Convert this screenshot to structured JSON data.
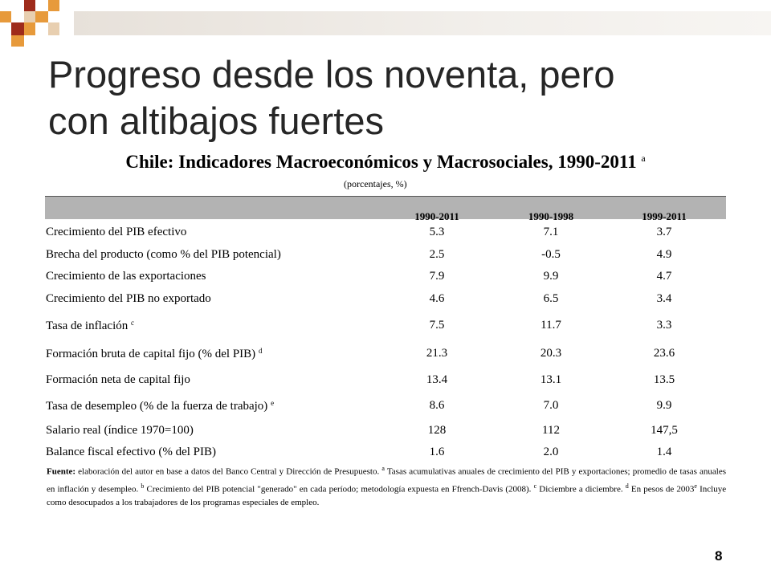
{
  "slide": {
    "title_line1": "Progreso desde los noventa, pero",
    "title_line2": "con altibajos fuertes",
    "page_number": "8"
  },
  "table": {
    "title": "Chile: Indicadores Macroeconómicos y Macrosociales, 1990-2011",
    "title_marker": "a",
    "units": "(porcentajes, %)",
    "columns": [
      "1990-2011",
      "1990-1998",
      "1999-2011"
    ],
    "rows": [
      {
        "label": "Crecimiento del PIB efectivo",
        "marker": "",
        "values": [
          "5.3",
          "7.1",
          "3.7"
        ]
      },
      {
        "label": "Brecha del producto (como % del PIB potencial)",
        "marker": "",
        "values": [
          "2.5",
          "-0.5",
          "4.9"
        ]
      },
      {
        "label": "Crecimiento de las exportaciones",
        "marker": "",
        "values": [
          "7.9",
          "9.9",
          "4.7"
        ]
      },
      {
        "label": "Crecimiento del PIB no exportado",
        "marker": "",
        "values": [
          "4.6",
          "6.5",
          "3.4"
        ]
      },
      {
        "label": "Tasa de inflación",
        "marker": "c",
        "values": [
          "7.5",
          "11.7",
          "3.3"
        ]
      },
      {
        "label": "Formación bruta de capital fijo (% del PIB)",
        "marker": "d",
        "values": [
          "21.3",
          "20.3",
          "23.6"
        ]
      },
      {
        "label": "Formación neta de capital fijo",
        "marker": "",
        "values": [
          "13.4",
          "13.1",
          "13.5"
        ]
      },
      {
        "label": "Tasa de desempleo (% de la fuerza de trabajo)",
        "marker": "e",
        "values": [
          "8.6",
          "7.0",
          "9.9"
        ]
      },
      {
        "label": "Salario real (índice 1970=100)",
        "marker": "",
        "values": [
          "128",
          "112",
          "147,5"
        ]
      },
      {
        "label": "Balance fiscal efectivo (% del PIB)",
        "marker": "",
        "values": [
          "1.6",
          "2.0",
          "1.4"
        ]
      }
    ]
  },
  "footnote": {
    "source_label": "Fuente:",
    "text1": "elaboración del autor en base a datos del Banco Central y Dirección de Presupuesto.",
    "mark_a": "a",
    "text2": "Tasas acumulativas anuales de crecimiento del PIB y exportaciones; promedio de tasas anuales en inflación y desempleo.",
    "mark_b": "b",
    "text3": "Crecimiento del PIB potencial \"generado\" en cada período; metodología expuesta en Ffrench-Davis (2008).",
    "mark_c": "c",
    "text4": "Diciembre a diciembre.",
    "mark_d": "d",
    "text5": "En pesos de 2003",
    "mark_e": "e",
    "text6": "Incluye como desocupados a los trabajadores de los programas especiales de empleo."
  },
  "colors": {
    "orange": "#e79a3b",
    "dark_red": "#9e2b1b",
    "tan": "#e8cfb0",
    "header_band": "#b3b3b3"
  }
}
